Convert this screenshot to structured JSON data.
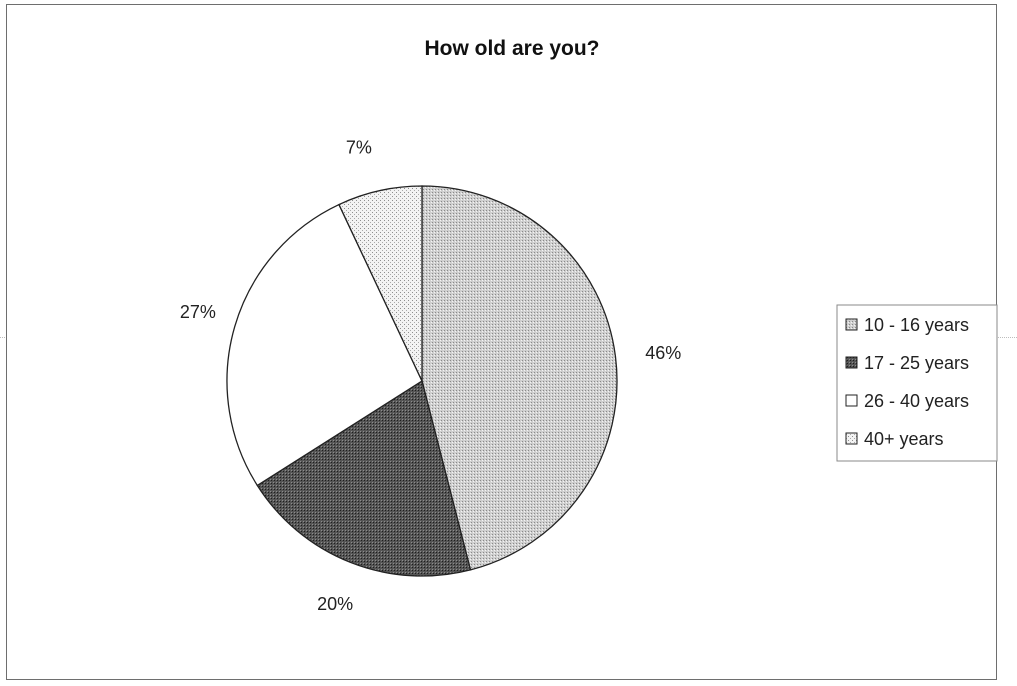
{
  "chart_data": {
    "type": "pie",
    "title": "How old are you?",
    "categories": [
      "10 - 16 years",
      "17 - 25 years",
      "26 - 40 years",
      "40+ years"
    ],
    "values": [
      46,
      20,
      27,
      7
    ],
    "labels": [
      "46%",
      "20%",
      "27%",
      "7%"
    ],
    "start_angle_deg": 0,
    "direction": "clockwise",
    "legend": "right",
    "colors": [
      "#c4c4c4",
      "#4e4e4e",
      "#ffffff",
      "#ececec"
    ]
  }
}
